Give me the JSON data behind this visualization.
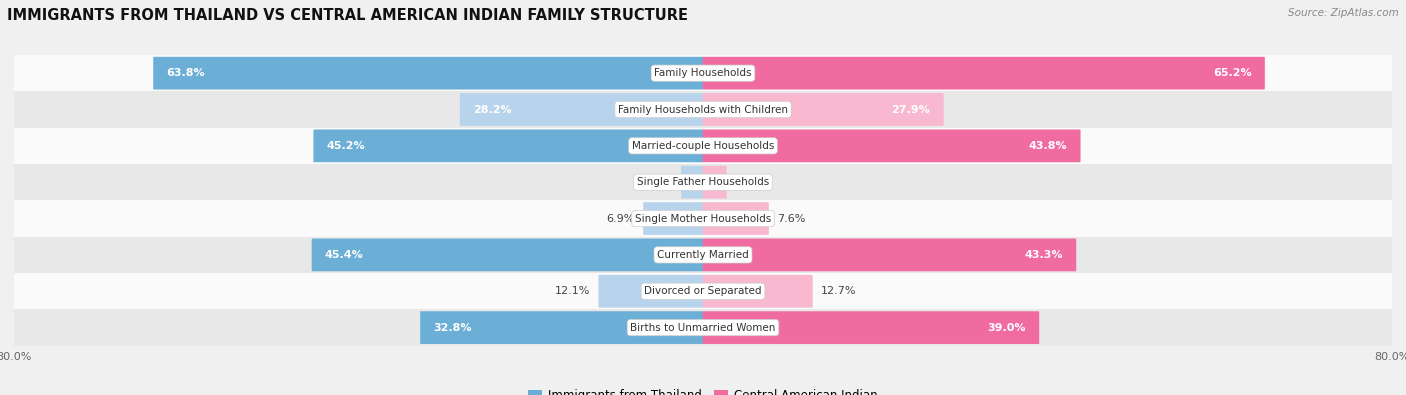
{
  "title": "IMMIGRANTS FROM THAILAND VS CENTRAL AMERICAN INDIAN FAMILY STRUCTURE",
  "source": "Source: ZipAtlas.com",
  "categories": [
    "Family Households",
    "Family Households with Children",
    "Married-couple Households",
    "Single Father Households",
    "Single Mother Households",
    "Currently Married",
    "Divorced or Separated",
    "Births to Unmarried Women"
  ],
  "thailand_values": [
    63.8,
    28.2,
    45.2,
    2.5,
    6.9,
    45.4,
    12.1,
    32.8
  ],
  "indian_values": [
    65.2,
    27.9,
    43.8,
    2.7,
    7.6,
    43.3,
    12.7,
    39.0
  ],
  "thailand_color_strong": "#6baed6",
  "indian_color_strong": "#f06ba0",
  "thailand_color_light": "#b8d4ec",
  "indian_color_light": "#f7b8d0",
  "strong_rows": [
    0,
    2,
    5,
    7
  ],
  "max_value": 80.0,
  "inside_label_threshold": 15.0,
  "background_color": "#f0f0f0",
  "row_bg_light": "#fafafa",
  "row_bg_dark": "#e8e8e8",
  "label_fontsize": 8.0,
  "title_fontsize": 10.5,
  "source_fontsize": 7.5,
  "legend_fontsize": 8.5,
  "value_fontsize": 8.0,
  "cat_fontsize": 7.5
}
